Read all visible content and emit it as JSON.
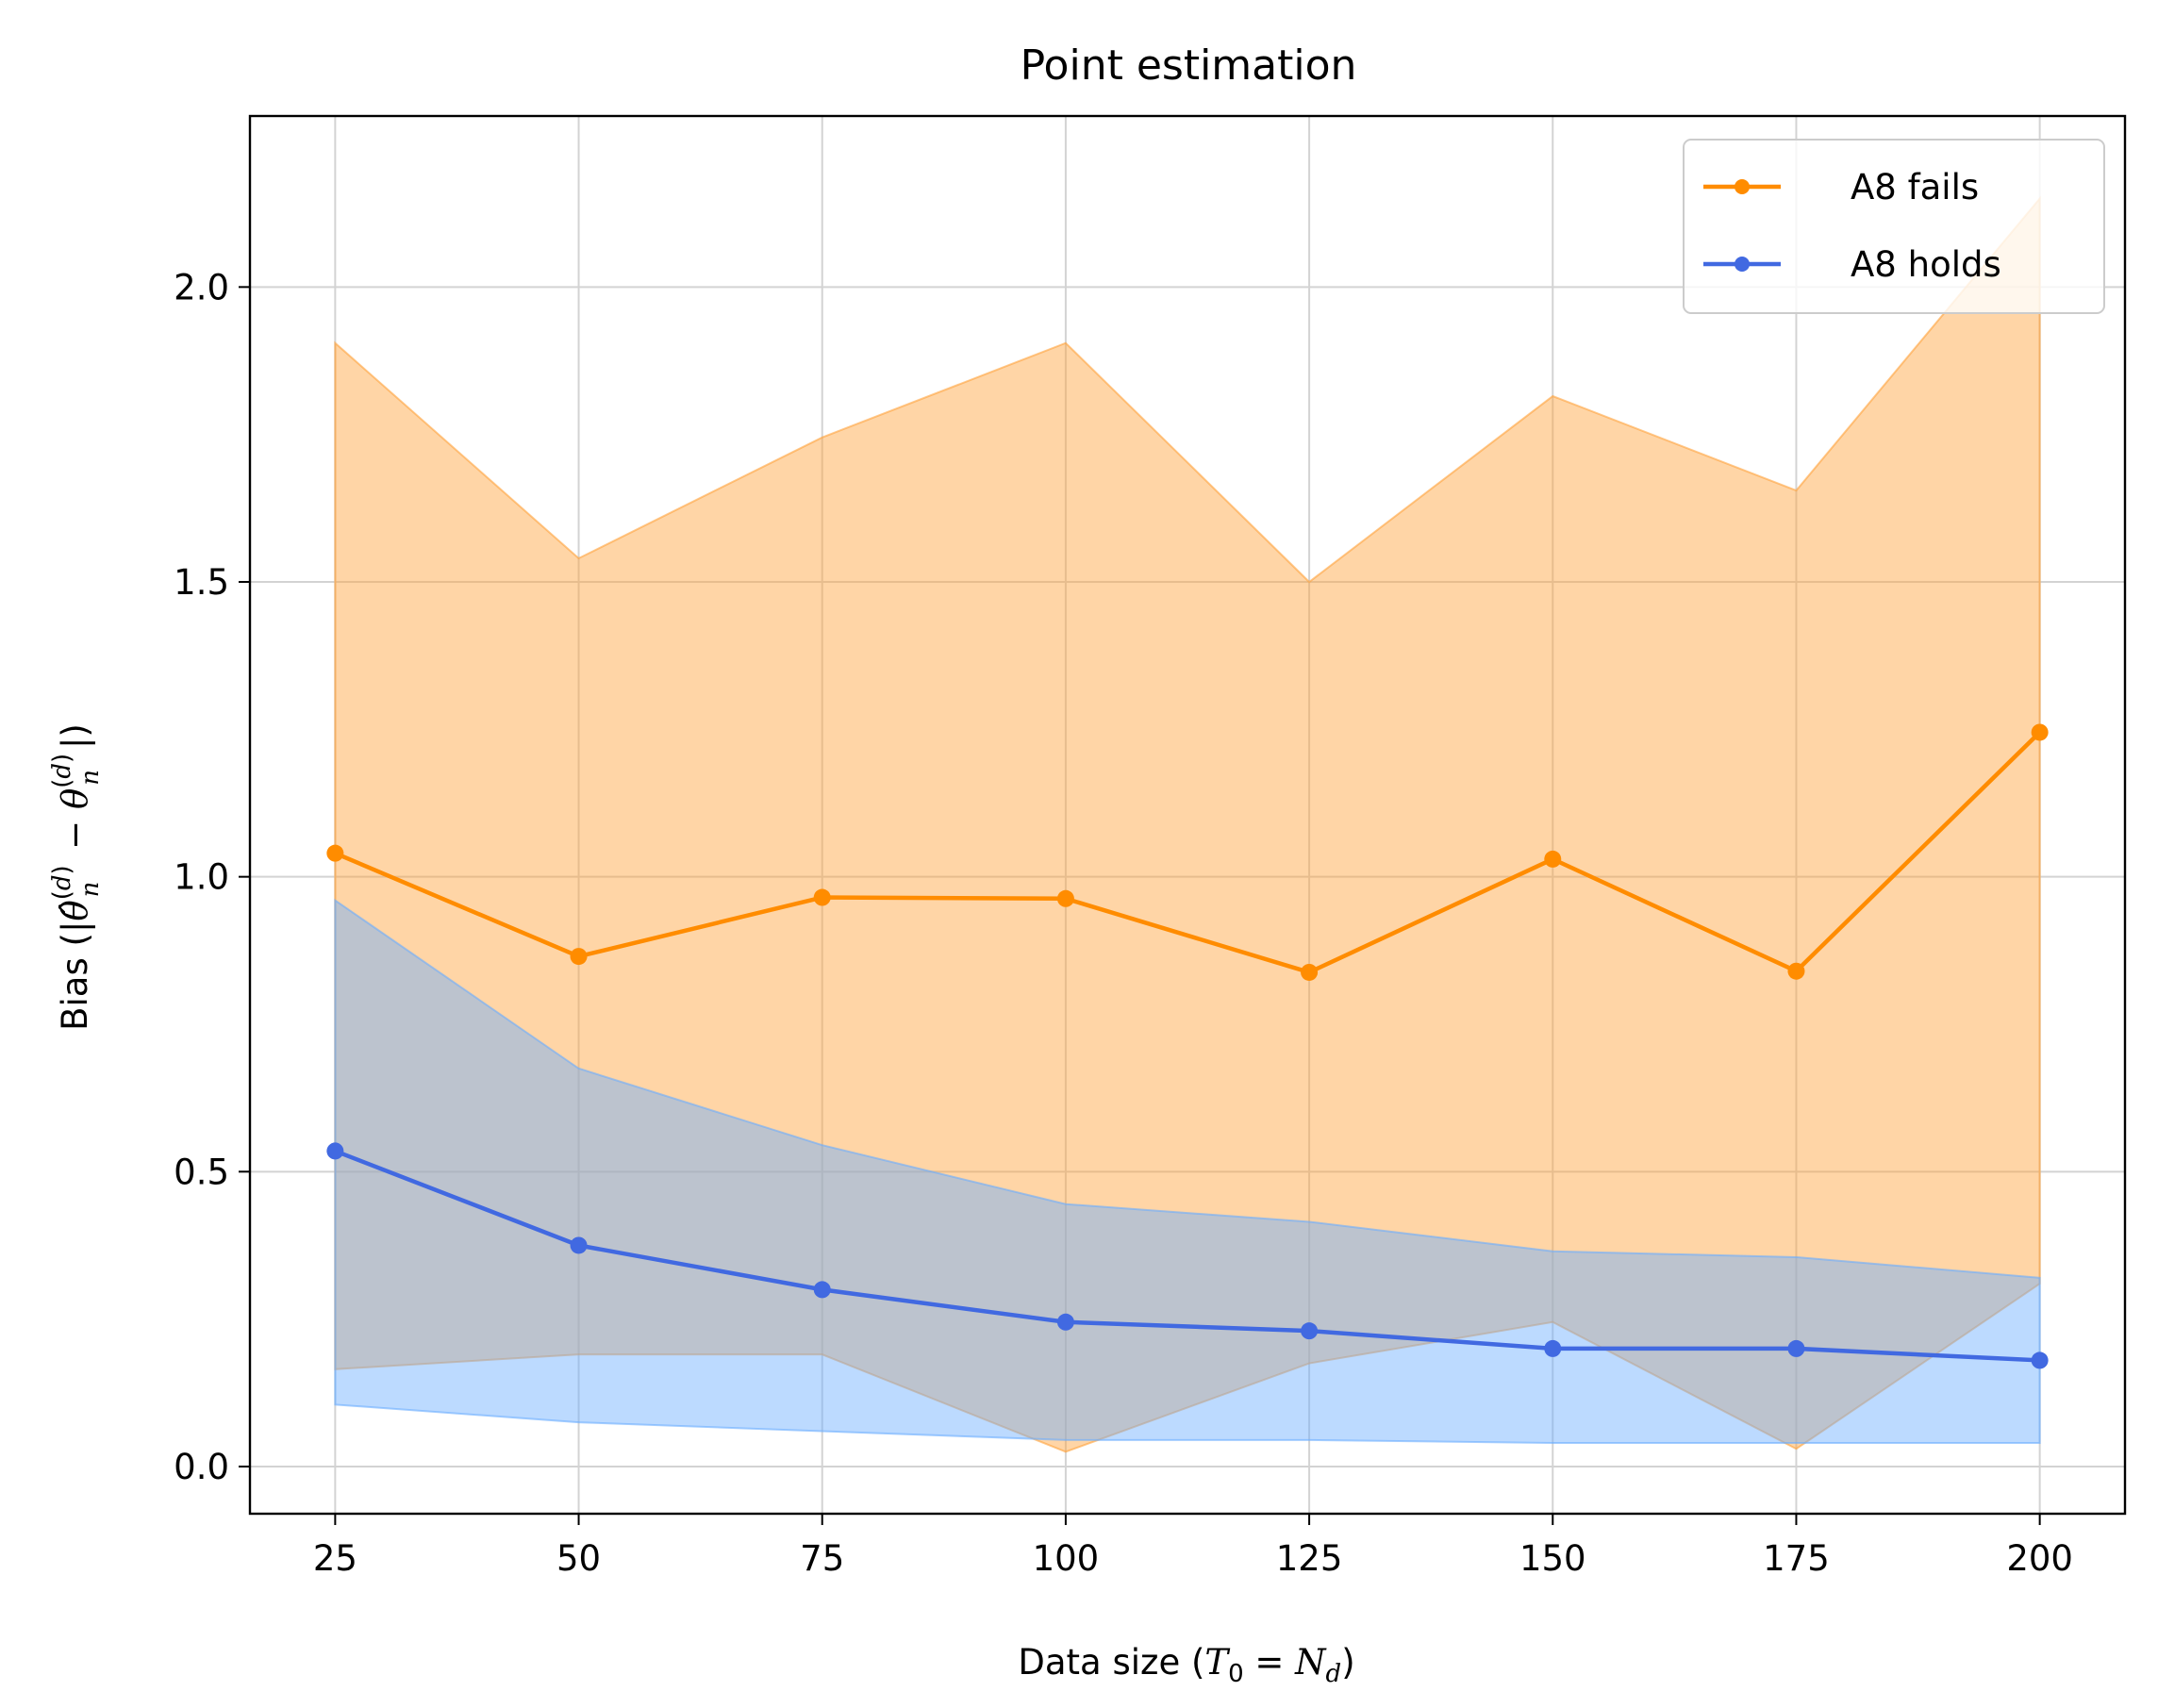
{
  "chart_data": {
    "type": "line",
    "title": "Point estimation",
    "xlabel": "Data size (T₀ = N_d)",
    "ylabel": "Bias (|θ̂⁽ᵈ⁾_n − θ⁽ᵈ⁾_n|)",
    "x": [
      25,
      50,
      75,
      100,
      125,
      150,
      175,
      200
    ],
    "xlim": [
      16.25,
      208.75
    ],
    "ylim": [
      -0.08,
      2.29
    ],
    "xticks": [
      25,
      50,
      75,
      100,
      125,
      150,
      175,
      200
    ],
    "yticks": [
      0.0,
      0.5,
      1.0,
      1.5,
      2.0
    ],
    "ytick_labels": [
      "0.0",
      "0.5",
      "1.0",
      "1.5",
      "2.0"
    ],
    "grid": true,
    "legend_position": "top-right",
    "series": [
      {
        "name": "A8 fails",
        "color": "#ff8c00",
        "fill_color": "#ffa23a",
        "values": [
          1.04,
          0.865,
          0.965,
          0.963,
          0.838,
          1.03,
          0.84,
          1.245
        ],
        "band_lower": [
          0.165,
          0.19,
          0.19,
          0.025,
          0.175,
          0.245,
          0.03,
          0.31
        ],
        "band_upper": [
          1.905,
          1.54,
          1.745,
          1.905,
          1.5,
          1.815,
          1.655,
          2.15
        ]
      },
      {
        "name": "A8 holds",
        "color": "#4169e1",
        "fill_color": "#6aaeff",
        "values": [
          0.535,
          0.375,
          0.3,
          0.245,
          0.23,
          0.2,
          0.2,
          0.18
        ],
        "band_lower": [
          0.105,
          0.075,
          0.06,
          0.045,
          0.045,
          0.04,
          0.04,
          0.04
        ],
        "band_upper": [
          0.96,
          0.675,
          0.545,
          0.445,
          0.415,
          0.365,
          0.355,
          0.32
        ]
      }
    ]
  }
}
